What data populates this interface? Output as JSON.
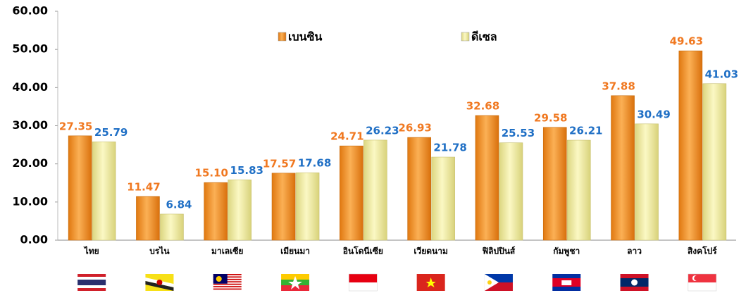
{
  "chart_data": {
    "type": "bar",
    "categories": [
      "ไทย",
      "บรไน",
      "มาเลเซีย",
      "เมียนมา",
      "อินโดนีเซีย",
      "เวียดนาม",
      "ฟิลิปปินส์",
      "กัมพูชา",
      "ลาว",
      "สิงคโปร์"
    ],
    "series": [
      {
        "name": "เบนซิน",
        "color": "#f7941d",
        "label_color": "#f07820",
        "values": [
          27.35,
          11.47,
          15.1,
          17.57,
          24.71,
          26.93,
          32.68,
          29.58,
          37.88,
          49.63
        ],
        "value_labels": [
          "27.35",
          "11.47",
          "15.10",
          "17.57",
          "24.71",
          "26.93",
          "32.68",
          "29.58",
          "37.88",
          "49.63"
        ]
      },
      {
        "name": "ดีเซล",
        "color": "#f3ee9c",
        "label_color": "#1f6fc5",
        "values": [
          25.79,
          6.84,
          15.83,
          17.68,
          26.23,
          21.78,
          25.53,
          26.21,
          30.49,
          41.03
        ],
        "value_labels": [
          "25.79",
          "6.84",
          "15.83",
          "17.68",
          "26.23",
          "21.78",
          "25.53",
          "26.21",
          "30.49",
          "41.03"
        ]
      }
    ],
    "ylim": [
      0,
      60
    ],
    "yticks": [
      {
        "value": 0,
        "label": "0.00"
      },
      {
        "value": 10,
        "label": "10.00"
      },
      {
        "value": 20,
        "label": "20.00"
      },
      {
        "value": 30,
        "label": "30.00"
      },
      {
        "value": 40,
        "label": "40.00"
      },
      {
        "value": 50,
        "label": "50.00"
      },
      {
        "value": 60,
        "label": "60.00"
      }
    ],
    "grid": false
  }
}
